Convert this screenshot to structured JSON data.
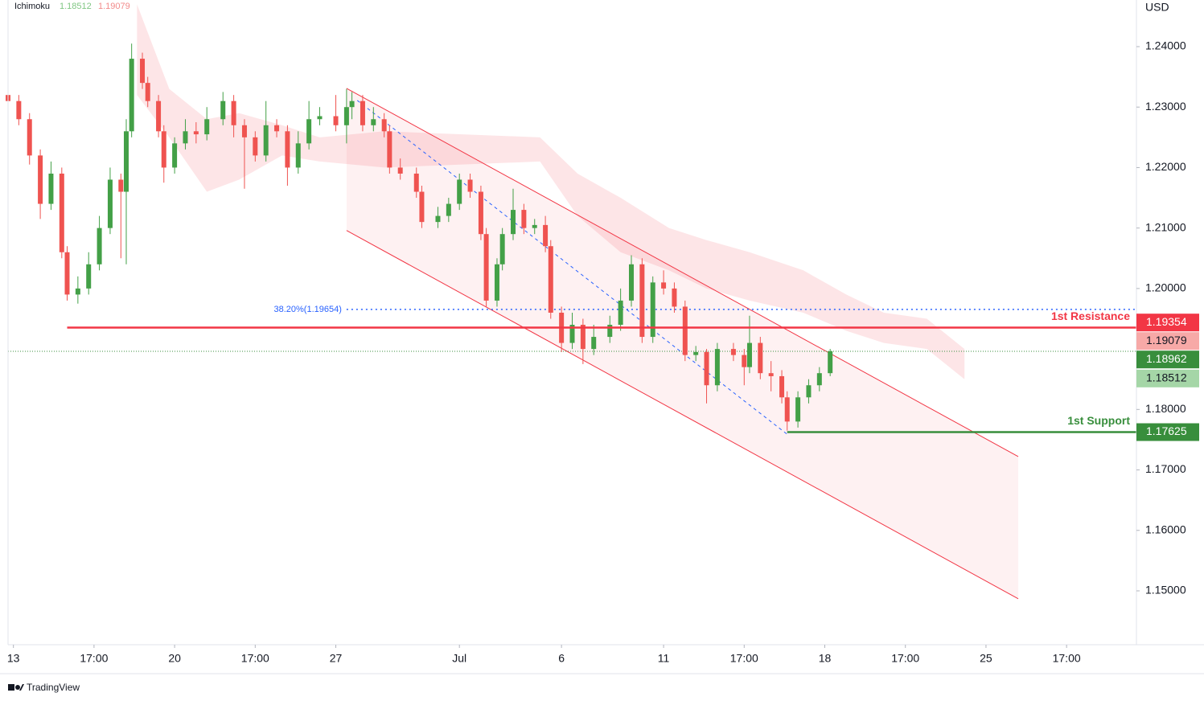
{
  "chart_data": {
    "type": "candlestick",
    "indicator": "Ichimoku",
    "currency": "USD",
    "brand": "TradingView",
    "up_color": "#43a047",
    "down_color": "#ef5350",
    "xlim": [
      0,
      210
    ],
    "ylim": [
      1.14109,
      1.24771
    ],
    "xticks": [
      {
        "value": 1,
        "label": "13"
      },
      {
        "value": 16,
        "label": "17:00"
      },
      {
        "value": 31,
        "label": "20"
      },
      {
        "value": 46,
        "label": "17:00"
      },
      {
        "value": 61,
        "label": "27"
      },
      {
        "value": 84,
        "label": "Jul"
      },
      {
        "value": 103,
        "label": "6"
      },
      {
        "value": 122,
        "label": "11"
      },
      {
        "value": 137,
        "label": "17:00"
      },
      {
        "value": 152,
        "label": "18"
      },
      {
        "value": 167,
        "label": "17:00"
      },
      {
        "value": 182,
        "label": "25"
      },
      {
        "value": 197,
        "label": "17:00"
      }
    ],
    "yticks": [
      {
        "value": 1.24,
        "label": "1.24000"
      },
      {
        "value": 1.23,
        "label": "1.23000"
      },
      {
        "value": 1.22,
        "label": "1.22000"
      },
      {
        "value": 1.21,
        "label": "1.21000"
      },
      {
        "value": 1.2,
        "label": "1.20000"
      },
      {
        "value": 1.18,
        "label": "1.18000"
      },
      {
        "value": 1.17,
        "label": "1.17000"
      },
      {
        "value": 1.16,
        "label": "1.16000"
      },
      {
        "value": 1.15,
        "label": "1.15000"
      }
    ],
    "x": [
      0,
      2,
      4,
      6,
      8,
      10,
      11,
      13,
      15,
      17,
      19,
      21,
      22,
      23,
      25,
      26,
      28,
      29,
      31,
      33,
      35,
      37,
      40,
      42,
      44,
      46,
      48,
      50,
      52,
      54,
      56,
      58,
      61,
      63,
      64,
      66,
      68,
      70,
      71,
      73,
      76,
      77,
      80,
      82,
      84,
      86,
      88,
      89,
      91,
      92,
      94,
      96,
      98,
      100,
      101,
      103,
      105,
      107,
      109,
      112,
      114,
      116,
      118,
      120,
      122,
      124,
      126,
      128,
      130,
      132,
      135,
      137,
      138,
      140,
      142,
      144,
      145,
      147,
      149,
      151,
      153
    ],
    "open": [
      1.232,
      1.231,
      1.228,
      1.222,
      1.214,
      1.219,
      1.206,
      1.199,
      1.2,
      1.204,
      1.21,
      1.218,
      1.216,
      1.226,
      1.238,
      1.234,
      1.231,
      1.226,
      1.22,
      1.224,
      1.226,
      1.2255,
      1.228,
      1.231,
      1.227,
      1.225,
      1.222,
      1.227,
      1.226,
      1.22,
      1.224,
      1.228,
      1.2285,
      1.227,
      1.23,
      1.231,
      1.227,
      1.228,
      1.226,
      1.22,
      1.219,
      1.216,
      1.211,
      1.212,
      1.214,
      1.218,
      1.216,
      1.209,
      1.198,
      1.204,
      1.209,
      1.213,
      1.21,
      1.2105,
      1.207,
      1.196,
      1.191,
      1.194,
      1.19,
      1.192,
      1.194,
      1.198,
      1.204,
      1.192,
      1.201,
      1.2,
      1.197,
      1.189,
      1.1895,
      1.184,
      1.19,
      1.189,
      1.187,
      1.191,
      1.186,
      1.1855,
      1.182,
      1.178,
      1.182,
      1.184,
      1.186
    ],
    "high": [
      1.2325,
      1.232,
      1.229,
      1.223,
      1.221,
      1.22,
      1.207,
      1.202,
      1.206,
      1.212,
      1.22,
      1.219,
      1.228,
      1.2405,
      1.239,
      1.235,
      1.232,
      1.227,
      1.225,
      1.228,
      1.2275,
      1.23,
      1.2325,
      1.232,
      1.228,
      1.226,
      1.231,
      1.228,
      1.227,
      1.226,
      1.231,
      1.23,
      1.232,
      1.233,
      1.2325,
      1.232,
      1.23,
      1.229,
      1.227,
      1.2215,
      1.22,
      1.217,
      1.2135,
      1.215,
      1.219,
      1.219,
      1.217,
      1.21,
      1.205,
      1.21,
      1.2165,
      1.214,
      1.2115,
      1.212,
      1.208,
      1.197,
      1.196,
      1.195,
      1.194,
      1.1955,
      1.2,
      1.2055,
      1.205,
      1.202,
      1.203,
      1.201,
      1.198,
      1.1905,
      1.19,
      1.191,
      1.191,
      1.19,
      1.1955,
      1.192,
      1.188,
      1.1865,
      1.183,
      1.183,
      1.185,
      1.187,
      1.19
    ],
    "low": [
      1.2295,
      1.227,
      1.2205,
      1.2115,
      1.213,
      1.205,
      1.198,
      1.1975,
      1.199,
      1.203,
      1.209,
      1.205,
      1.204,
      1.225,
      1.233,
      1.23,
      1.225,
      1.2175,
      1.219,
      1.223,
      1.224,
      1.2245,
      1.227,
      1.225,
      1.2165,
      1.221,
      1.221,
      1.225,
      1.217,
      1.219,
      1.223,
      1.227,
      1.226,
      1.224,
      1.228,
      1.226,
      1.226,
      1.225,
      1.219,
      1.218,
      1.215,
      1.21,
      1.21,
      1.211,
      1.213,
      1.215,
      1.208,
      1.197,
      1.197,
      1.203,
      1.208,
      1.209,
      1.209,
      1.206,
      1.195,
      1.1895,
      1.19,
      1.1875,
      1.189,
      1.191,
      1.193,
      1.197,
      1.191,
      1.191,
      1.199,
      1.196,
      1.188,
      1.188,
      1.181,
      1.183,
      1.188,
      1.184,
      1.186,
      1.185,
      1.183,
      1.181,
      1.1765,
      1.177,
      1.181,
      1.183,
      1.1855
    ],
    "close": [
      1.231,
      1.228,
      1.222,
      1.214,
      1.219,
      1.206,
      1.199,
      1.2,
      1.204,
      1.21,
      1.218,
      1.216,
      1.226,
      1.238,
      1.234,
      1.231,
      1.226,
      1.22,
      1.224,
      1.226,
      1.2255,
      1.228,
      1.231,
      1.227,
      1.225,
      1.222,
      1.227,
      1.226,
      1.22,
      1.224,
      1.228,
      1.2285,
      1.227,
      1.23,
      1.231,
      1.227,
      1.228,
      1.226,
      1.22,
      1.219,
      1.216,
      1.211,
      1.212,
      1.214,
      1.218,
      1.216,
      1.209,
      1.198,
      1.204,
      1.209,
      1.213,
      1.21,
      1.2105,
      1.207,
      1.196,
      1.191,
      1.194,
      1.19,
      1.192,
      1.194,
      1.198,
      1.204,
      1.192,
      1.201,
      1.2,
      1.197,
      1.189,
      1.1895,
      1.184,
      1.19,
      1.189,
      1.187,
      1.191,
      1.186,
      1.1855,
      1.182,
      1.178,
      1.182,
      1.184,
      1.186,
      1.18962
    ],
    "cloud": {
      "color": "#f23645",
      "x": [
        24,
        30,
        37,
        43,
        51,
        58,
        70,
        99,
        106,
        114,
        123,
        130,
        138,
        148,
        156,
        163,
        171,
        178
      ],
      "upper": [
        1.247,
        1.233,
        1.228,
        1.229,
        1.227,
        1.225,
        1.226,
        1.225,
        1.219,
        1.215,
        1.21,
        1.208,
        1.206,
        1.203,
        1.199,
        1.196,
        1.195,
        1.19
      ],
      "lower": [
        1.232,
        1.225,
        1.216,
        1.218,
        1.222,
        1.221,
        1.22,
        1.221,
        1.212,
        1.206,
        1.203,
        1.2,
        1.198,
        1.196,
        1.193,
        1.191,
        1.19,
        1.185
      ]
    },
    "channel": {
      "color": "#f23645",
      "x": [
        63,
        188
      ],
      "upper": [
        1.2331,
        1.1722
      ],
      "lower": [
        1.2096,
        1.1487
      ]
    },
    "fib": {
      "label": "38.20%(1.19654)",
      "value": 1.19654,
      "from": 63,
      "color": "#2962ff",
      "x": [
        65,
        145
      ],
      "y": [
        1.2311,
        1.1759
      ]
    },
    "levels": [
      {
        "name": "1st Resistance",
        "value": 1.19354,
        "color": "#f23645",
        "from": 11
      },
      {
        "name": "1st Support",
        "value": 1.17625,
        "color": "#388e3c",
        "from": 145
      }
    ],
    "last_price": {
      "value": 1.18962,
      "color": "#388e3c"
    },
    "price_labels": [
      {
        "value": 1.19079,
        "color": "#f7a9a7"
      },
      {
        "value": 1.18512,
        "color": "#a5d6a7"
      }
    ]
  }
}
